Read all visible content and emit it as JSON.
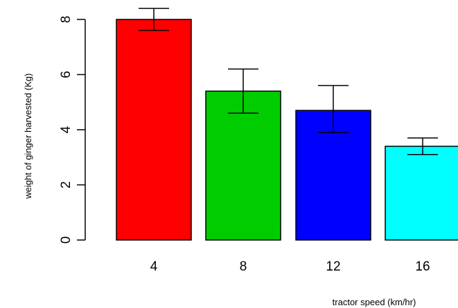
{
  "chart_data": {
    "type": "bar",
    "title": "",
    "xlabel": "tractor speed (km/hr)",
    "ylabel": "weight of ginger harvested (Kg)",
    "categories": [
      "4",
      "8",
      "12",
      "16"
    ],
    "values": [
      8.0,
      5.4,
      4.7,
      3.4
    ],
    "error_low": [
      7.6,
      4.6,
      3.9,
      3.1
    ],
    "error_high": [
      8.4,
      6.2,
      5.6,
      3.7
    ],
    "bar_colors": [
      "#ff0000",
      "#00cc00",
      "#0000ff",
      "#00ffff"
    ],
    "ylim": [
      0,
      8
    ],
    "yticks": [
      "0",
      "2",
      "4",
      "6",
      "8"
    ],
    "grid": false,
    "legend": false
  }
}
